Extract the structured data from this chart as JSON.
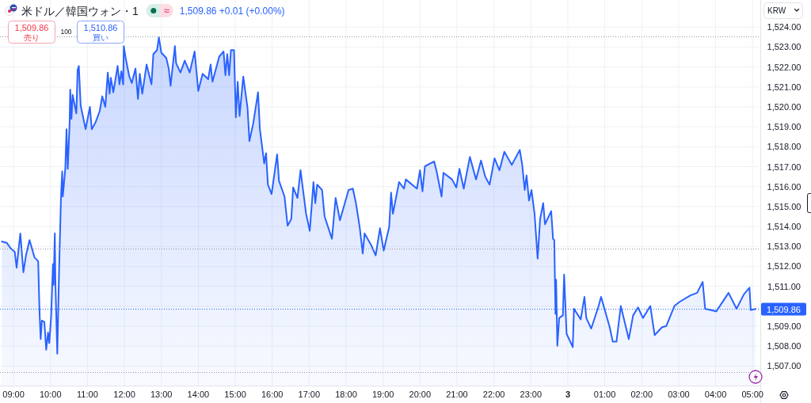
{
  "chart_data": {
    "type": "area",
    "title": "米ドル／韓国ウォン・1",
    "ylabel": "KRW",
    "annotations": [
      "≈",
      "1,509.86 +0.01 (+0.00%)",
      "1,509.86",
      "売り",
      "100",
      "1,510.86",
      "買い"
    ],
    "color": "#2962ff",
    "grid": true,
    "xlim": [
      "--01-02T08:38",
      "--01-03T05:10"
    ],
    "ylim": [
      1506.02,
      1525.36
    ],
    "xticks": [
      {
        "value": "--01-02T09:00",
        "label": "09:00"
      },
      {
        "value": "--01-02T10:00",
        "label": "10:00"
      },
      {
        "value": "--01-02T11:00",
        "label": "11:00"
      },
      {
        "value": "--01-02T12:00",
        "label": "12:00"
      },
      {
        "value": "--01-02T13:00",
        "label": "13:00"
      },
      {
        "value": "--01-02T14:00",
        "label": "14:00"
      },
      {
        "value": "--01-02T15:00",
        "label": "15:00"
      },
      {
        "value": "--01-02T16:00",
        "label": "16:00"
      },
      {
        "value": "--01-02T17:00",
        "label": "17:00"
      },
      {
        "value": "--01-02T18:00",
        "label": "18:00"
      },
      {
        "value": "--01-02T19:00",
        "label": "19:00"
      },
      {
        "value": "--01-02T20:00",
        "label": "20:00"
      },
      {
        "value": "--01-02T21:00",
        "label": "21:00"
      },
      {
        "value": "--01-02T22:00",
        "label": "22:00"
      },
      {
        "value": "--01-02T23:00",
        "label": "23:00"
      },
      {
        "value": "--01-03",
        "label": "3"
      },
      {
        "value": "--01-03T01:00",
        "label": "01:00"
      },
      {
        "value": "--01-03T02:00",
        "label": "02:00"
      },
      {
        "value": "--01-03T03:00",
        "label": "03:00"
      },
      {
        "value": "--01-03T04:00",
        "label": "04:00"
      },
      {
        "value": "--01-03T05:00",
        "label": "05:00"
      }
    ],
    "yticks": [
      {
        "value": 1507,
        "label": "1,507.00"
      },
      {
        "value": 1508,
        "label": "1,508.00"
      },
      {
        "value": 1509,
        "label": "1,509.00"
      },
      {
        "value": 1510,
        "label": null
      },
      {
        "value": 1511,
        "label": "1,511.00"
      },
      {
        "value": 1512,
        "label": "1,512.00"
      },
      {
        "value": 1513,
        "label": "1,513.00"
      },
      {
        "value": 1514,
        "label": "1,514.00"
      },
      {
        "value": 1515,
        "label": "1,515.00"
      },
      {
        "value": 1516,
        "label": "1,516.00"
      },
      {
        "value": 1517,
        "label": "1,517.00"
      },
      {
        "value": 1518,
        "label": "1,518.00"
      },
      {
        "value": 1519,
        "label": "1,519.00"
      },
      {
        "value": 1520,
        "label": "1,520.00"
      },
      {
        "value": 1521,
        "label": "1,521.00"
      },
      {
        "value": 1522,
        "label": "1,522.00"
      },
      {
        "value": 1523,
        "label": "1,523.00"
      },
      {
        "value": 1524,
        "label": "1,524.00"
      }
    ],
    "ref_lines": [
      {
        "axis": "y",
        "value": 1523.54,
        "color": "#9598a1",
        "line_style": "dotted"
      },
      {
        "axis": "y",
        "value": 1512.88,
        "color": "#9598a1",
        "line_style": "dotted"
      },
      {
        "axis": "y",
        "value": 1509.86,
        "label": "1,509.86",
        "color": "#2962ff",
        "line_style": "dotted"
      },
      {
        "axis": "y",
        "value": 1506.71,
        "color": "#9598a1",
        "line_style": "dotted"
      }
    ],
    "x": [
      "--01-02T08:41",
      "--01-02T08:49",
      "--01-02T08:55",
      "--01-02T09:02",
      "--01-02T09:05",
      "--01-02T09:11",
      "--01-02T09:16",
      "--01-02T09:20",
      "--01-02T09:26",
      "--01-02T09:34",
      "--01-02T09:40",
      "--01-02T09:42",
      "--01-02T09:44",
      "--01-02T09:46",
      "--01-02T09:50",
      "--01-02T09:53",
      "--01-02T09:56",
      "--01-02T09:58",
      "--01-02T10:01",
      "--01-02T10:04",
      "--01-02T10:05",
      "--01-02T10:07",
      "--01-02T10:08",
      "--01-02T10:11",
      "--01-02T10:14",
      "--01-02T10:17",
      "--01-02T10:19",
      "--01-02T10:20",
      "--01-02T10:24",
      "--01-02T10:26",
      "--01-02T10:28",
      "--01-02T10:31",
      "--01-02T10:32",
      "--01-02T10:34",
      "--01-02T10:36",
      "--01-02T10:42",
      "--01-02T10:44",
      "--01-02T10:46",
      "--01-02T10:49",
      "--01-02T10:57",
      "--01-02T11:04",
      "--01-02T11:07",
      "--01-02T11:13",
      "--01-02T11:20",
      "--01-02T11:24",
      "--01-02T11:29",
      "--01-02T11:33",
      "--01-02T11:36",
      "--01-02T11:38",
      "--01-02T11:42",
      "--01-02T11:49",
      "--01-02T11:52",
      "--01-02T11:55",
      "--01-02T11:58",
      "--01-02T11:59",
      "--01-02T12:02",
      "--01-02T12:08",
      "--01-02T12:12",
      "--01-02T12:18",
      "--01-02T12:22",
      "--01-02T12:25",
      "--01-02T12:29",
      "--01-02T12:36",
      "--01-02T12:44",
      "--01-02T12:47",
      "--01-02T12:53",
      "--01-02T12:56",
      "--01-02T13:00",
      "--01-02T13:08",
      "--01-02T13:12",
      "--01-02T13:15",
      "--01-02T13:22",
      "--01-02T13:24",
      "--01-02T13:31",
      "--01-02T13:38",
      "--01-02T13:46",
      "--01-02T13:54",
      "--01-02T14:00",
      "--01-02T14:07",
      "--01-02T14:16",
      "--01-02T14:20",
      "--01-02T14:23",
      "--01-02T14:34",
      "--01-02T14:41",
      "--01-02T14:44",
      "--01-02T14:47",
      "--01-02T14:50",
      "--01-02T14:53",
      "--01-02T14:58",
      "--01-02T15:01",
      "--01-02T15:04",
      "--01-02T15:07",
      "--01-02T15:13",
      "--01-02T15:20",
      "--01-02T15:23",
      "--01-02T15:29",
      "--01-02T15:37",
      "--01-02T15:40",
      "--01-02T15:47",
      "--01-02T15:50",
      "--01-02T15:53",
      "--01-02T15:59",
      "--01-02T16:08",
      "--01-02T16:11",
      "--01-02T16:20",
      "--01-02T16:25",
      "--01-02T16:31",
      "--01-02T16:34",
      "--01-02T16:41",
      "--01-02T16:46",
      "--01-02T16:55",
      "--01-02T17:01",
      "--01-02T17:07",
      "--01-02T17:10",
      "--01-02T17:13",
      "--01-02T17:21",
      "--01-02T17:25",
      "--01-02T17:37",
      "--01-02T17:43",
      "--01-02T17:50",
      "--01-02T18:04",
      "--01-02T18:11",
      "--01-02T18:16",
      "--01-02T18:22",
      "--01-02T18:27",
      "--01-02T18:30",
      "--01-02T18:41",
      "--01-02T18:48",
      "--01-02T18:55",
      "--01-02T19:01",
      "--01-02T19:10",
      "--01-02T19:13",
      "--01-02T19:16",
      "--01-02T19:26",
      "--01-02T19:34",
      "--01-02T19:37",
      "--01-02T19:55",
      "--01-02T20:00",
      "--01-02T20:04",
      "--01-02T20:08",
      "--01-02T20:23",
      "--01-02T20:27",
      "--01-02T20:35",
      "--01-02T20:38",
      "--01-02T20:52",
      "--01-02T20:59",
      "--01-02T21:04",
      "--01-02T21:11",
      "--01-02T21:21",
      "--01-02T21:31",
      "--01-02T21:39",
      "--01-02T21:46",
      "--01-02T21:53",
      "--01-02T22:01",
      "--01-02T22:09",
      "--01-02T22:17",
      "--01-02T22:29",
      "--01-02T22:42",
      "--01-02T22:46",
      "--01-02T22:50",
      "--01-02T22:53",
      "--01-02T22:57",
      "--01-02T23:01",
      "--01-02T23:06",
      "--01-02T23:11",
      "--01-02T23:15",
      "--01-02T23:20",
      "--01-02T23:23",
      "--01-02T23:33",
      "--01-02T23:36",
      "--01-02T23:38",
      "--01-02T23:40",
      "--01-02T23:41",
      "--01-02T23:43",
      "--01-02T23:46",
      "--01-02T23:52",
      "--01-02T23:54",
      "--01-02T23:58",
      "--01-03T00:08",
      "--01-03T00:10",
      "--01-03T00:21",
      "--01-03T00:27",
      "--01-03T00:30",
      "--01-03T00:38",
      "--01-03T00:50",
      "--01-03T00:54",
      "--01-03T01:08",
      "--01-03T01:13",
      "--01-03T01:19",
      "--01-03T01:26",
      "--01-03T01:39",
      "--01-03T01:46",
      "--01-03T01:54",
      "--01-03T02:02",
      "--01-03T02:14",
      "--01-03T02:21",
      "--01-03T02:33",
      "--01-03T02:40",
      "--01-03T02:53",
      "--01-03T03:01",
      "--01-03T03:19",
      "--01-03T03:30",
      "--01-03T03:39",
      "--01-03T03:43",
      "--01-03T04:01",
      "--01-03T04:21",
      "--01-03T04:34",
      "--01-03T04:46",
      "--01-03T04:55",
      "--01-03T04:57",
      "--01-03T05:05"
    ],
    "values": [
      1513.25,
      1513.18,
      1512.92,
      1512.72,
      1511.93,
      1513.65,
      1511.7,
      1512.52,
      1513.32,
      1512.45,
      1512.26,
      1509.87,
      1508.35,
      1509.28,
      1509.21,
      1507.82,
      1508.68,
      1508.15,
      1509.48,
      1512.12,
      1511.07,
      1513.65,
      1511.2,
      1507.62,
      1511.86,
      1515.43,
      1516.76,
      1515.5,
      1516.89,
      1518.88,
      1516.89,
      1519.14,
      1520.86,
      1519.4,
      1520.6,
      1519.67,
      1521.85,
      1522.05,
      1520.07,
      1518.88,
      1520.0,
      1518.88,
      1519.21,
      1519.8,
      1520.53,
      1520.0,
      1521.72,
      1520.66,
      1521.46,
      1520.73,
      1522.05,
      1521.13,
      1521.79,
      1521.13,
      1523.05,
      1522.45,
      1521.52,
      1521.19,
      1521.92,
      1520.4,
      1521.66,
      1520.66,
      1522.12,
      1521.13,
      1522.65,
      1522.85,
      1523.48,
      1522.72,
      1522.45,
      1521.92,
      1521.06,
      1523.05,
      1522.19,
      1521.72,
      1522.32,
      1521.72,
      1522.78,
      1520.8,
      1521.66,
      1521.39,
      1522.12,
      1521.26,
      1522.52,
      1522.78,
      1521.59,
      1522.65,
      1521.59,
      1522.85,
      1522.85,
      1519.47,
      1521.26,
      1519.54,
      1521.52,
      1519.93,
      1518.28,
      1519.14,
      1520.73,
      1518.88,
      1517.16,
      1517.68,
      1516.1,
      1515.63,
      1517.62,
      1516.29,
      1515.5,
      1514.04,
      1514.37,
      1515.96,
      1515.43,
      1516.82,
      1514.64,
      1513.78,
      1516.23,
      1515.17,
      1516.1,
      1515.83,
      1514.51,
      1513.38,
      1515.43,
      1514.31,
      1515.83,
      1515.9,
      1515.17,
      1513.98,
      1512.65,
      1513.65,
      1513.05,
      1512.55,
      1513.91,
      1512.79,
      1513.98,
      1515.7,
      1514.64,
      1516.23,
      1515.9,
      1516.36,
      1515.9,
      1516.82,
      1515.76,
      1517.02,
      1517.26,
      1516.76,
      1515.5,
      1516.69,
      1516.36,
      1515.96,
      1516.89,
      1515.9,
      1517.49,
      1516.36,
      1517.31,
      1516.49,
      1516.1,
      1517.42,
      1516.82,
      1517.75,
      1517.09,
      1517.84,
      1517.09,
      1515.83,
      1516.56,
      1515.3,
      1515.83,
      1514.64,
      1512.39,
      1514.37,
      1515.17,
      1514.11,
      1514.77,
      1513.38,
      1513.32,
      1509.61,
      1511.33,
      1508.02,
      1509.41,
      1509.54,
      1511.59,
      1508.62,
      1507.95,
      1509.87,
      1509.34,
      1510.47,
      1509.41,
      1508.88,
      1510.01,
      1510.47,
      1508.95,
      1508.22,
      1508.22,
      1510.01,
      1508.35,
      1509.54,
      1509.94,
      1509.41,
      1510.01,
      1508.55,
      1508.95,
      1509.01,
      1510.01,
      1510.21,
      1510.54,
      1510.67,
      1511.22,
      1509.87,
      1509.74,
      1510.67,
      1509.87,
      1510.6,
      1510.93,
      1509.81,
      1509.86
    ]
  }
}
